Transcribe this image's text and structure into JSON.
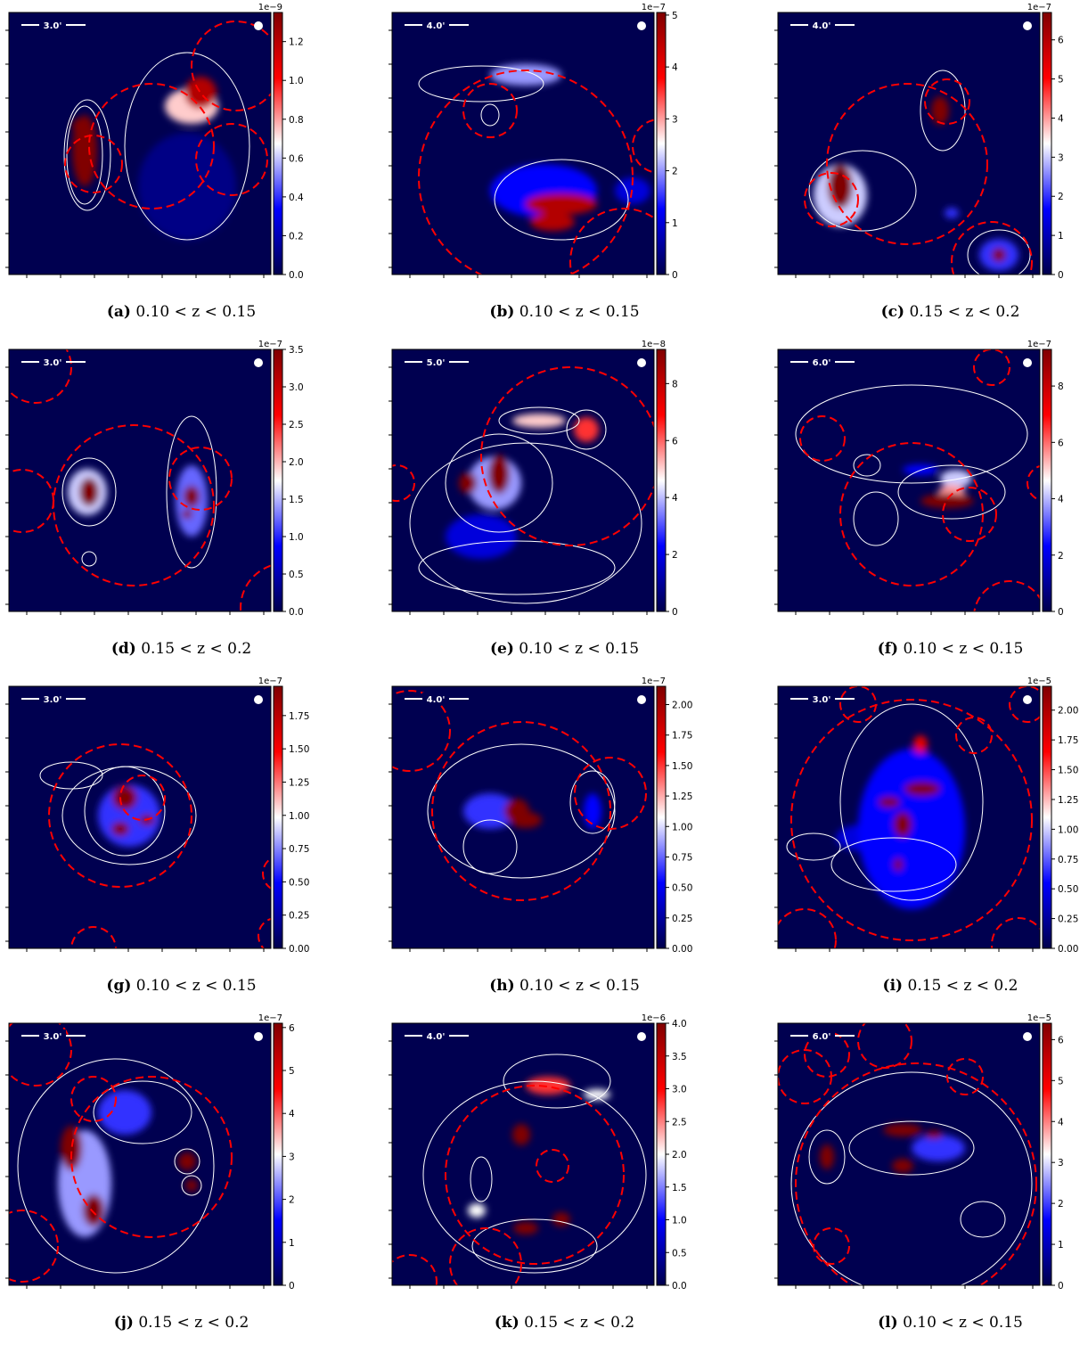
{
  "panels": [
    {
      "id": "a",
      "letter": "(a)",
      "caption": "0.10 < z < 0.15",
      "scale_label": "3.0'",
      "exponent": "1e−9",
      "ticks": [
        "0.0",
        "0.2",
        "0.4",
        "0.6",
        "0.8",
        "1.0",
        "1.2"
      ],
      "tick_values": [
        0,
        0.2,
        0.4,
        0.6,
        0.8,
        1.0,
        1.2
      ],
      "vmax": 1.35
    },
    {
      "id": "b",
      "letter": "(b)",
      "caption": "0.10 < z < 0.15",
      "scale_label": "4.0'",
      "exponent": "1e−7",
      "ticks": [
        "0",
        "1",
        "2",
        "3",
        "4",
        "5"
      ],
      "tick_values": [
        0,
        1,
        2,
        3,
        4,
        5
      ],
      "vmax": 5.05
    },
    {
      "id": "c",
      "letter": "(c)",
      "caption": "0.15 < z < 0.2",
      "scale_label": "4.0'",
      "exponent": "1e−7",
      "ticks": [
        "0",
        "1",
        "2",
        "3",
        "4",
        "5",
        "6"
      ],
      "tick_values": [
        0,
        1,
        2,
        3,
        4,
        5,
        6
      ],
      "vmax": 6.7
    },
    {
      "id": "d",
      "letter": "(d)",
      "caption": "0.15 < z < 0.2",
      "scale_label": "3.0'",
      "exponent": "1e−7",
      "ticks": [
        "0.0",
        "0.5",
        "1.0",
        "1.5",
        "2.0",
        "2.5",
        "3.0",
        "3.5"
      ],
      "tick_values": [
        0,
        0.5,
        1.0,
        1.5,
        2.0,
        2.5,
        3.0,
        3.5
      ],
      "vmax": 3.5
    },
    {
      "id": "e",
      "letter": "(e)",
      "caption": "0.10 < z < 0.15",
      "scale_label": "5.0'",
      "exponent": "1e−8",
      "ticks": [
        "0",
        "2",
        "4",
        "6",
        "8"
      ],
      "tick_values": [
        0,
        2,
        4,
        6,
        8
      ],
      "vmax": 9.2
    },
    {
      "id": "f",
      "letter": "(f)",
      "caption": "0.10 < z < 0.15",
      "scale_label": "6.0'",
      "exponent": "1e−7",
      "ticks": [
        "0",
        "2",
        "4",
        "6",
        "8"
      ],
      "tick_values": [
        0,
        2,
        4,
        6,
        8
      ],
      "vmax": 9.3
    },
    {
      "id": "g",
      "letter": "(g)",
      "caption": "0.10 < z < 0.15",
      "scale_label": "3.0'",
      "exponent": "1e−7",
      "ticks": [
        "0.00",
        "0.25",
        "0.50",
        "0.75",
        "1.00",
        "1.25",
        "1.50",
        "1.75"
      ],
      "tick_values": [
        0,
        0.25,
        0.5,
        0.75,
        1.0,
        1.25,
        1.5,
        1.75
      ],
      "vmax": 1.97
    },
    {
      "id": "h",
      "letter": "(h)",
      "caption": "0.10 < z < 0.15",
      "scale_label": "4.0'",
      "exponent": "1e−7",
      "ticks": [
        "0.00",
        "0.25",
        "0.50",
        "0.75",
        "1.00",
        "1.25",
        "1.50",
        "1.75",
        "2.00"
      ],
      "tick_values": [
        0,
        0.25,
        0.5,
        0.75,
        1.0,
        1.25,
        1.5,
        1.75,
        2.0
      ],
      "vmax": 2.15
    },
    {
      "id": "i",
      "letter": "(i)",
      "caption": "0.15 < z < 0.2",
      "scale_label": "3.0'",
      "exponent": "1e−5",
      "ticks": [
        "0.00",
        "0.25",
        "0.50",
        "0.75",
        "1.00",
        "1.25",
        "1.50",
        "1.75",
        "2.00"
      ],
      "tick_values": [
        0,
        0.25,
        0.5,
        0.75,
        1.0,
        1.25,
        1.5,
        1.75,
        2.0
      ],
      "vmax": 2.2
    },
    {
      "id": "j",
      "letter": "(j)",
      "caption": "0.15 < z < 0.2",
      "scale_label": "3.0'",
      "exponent": "1e−7",
      "ticks": [
        "0",
        "1",
        "2",
        "3",
        "4",
        "5",
        "6"
      ],
      "tick_values": [
        0,
        1,
        2,
        3,
        4,
        5,
        6
      ],
      "vmax": 6.1
    },
    {
      "id": "k",
      "letter": "(k)",
      "caption": "0.15 < z < 0.2",
      "scale_label": "4.0'",
      "exponent": "1e−6",
      "ticks": [
        "0.0",
        "0.5",
        "1.0",
        "1.5",
        "2.0",
        "2.5",
        "3.0",
        "3.5",
        "4.0"
      ],
      "tick_values": [
        0,
        0.5,
        1.0,
        1.5,
        2.0,
        2.5,
        3.0,
        3.5,
        4.0
      ],
      "vmax": 4.0
    },
    {
      "id": "l",
      "letter": "(l)",
      "caption": "0.10 < z < 0.15",
      "scale_label": "6.0'",
      "exponent": "1e−5",
      "ticks": [
        "0",
        "1",
        "2",
        "3",
        "4",
        "5",
        "6"
      ],
      "tick_values": [
        0,
        1,
        2,
        3,
        4,
        5,
        6
      ],
      "vmax": 6.4
    }
  ],
  "chart_data": {
    "type": "heatmap",
    "colormap": [
      "#00004c",
      "#0000ff",
      "#ffffff",
      "#ff0000",
      "#800000"
    ],
    "background_color": "#000050",
    "contour_color": "#ffffff",
    "circle_color": "#ff0000",
    "panel_count": 12
  }
}
